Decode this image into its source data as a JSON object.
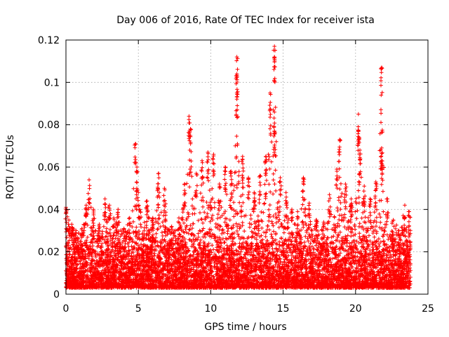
{
  "chart_data": {
    "type": "scatter",
    "title": "Day 006 of 2016, Rate Of TEC Index for receiver ista",
    "xlabel": "GPS time / hours",
    "ylabel": "ROTI / TECUs",
    "xlim": [
      0,
      25
    ],
    "ylim": [
      0,
      0.12
    ],
    "x_ticks": [
      0,
      5,
      10,
      15,
      20,
      25
    ],
    "x_tick_labels": [
      "0",
      "5",
      "10",
      "15",
      "20",
      "25"
    ],
    "y_ticks": [
      0,
      0.02,
      0.04,
      0.06,
      0.08,
      0.1,
      0.12
    ],
    "y_tick_labels": [
      "0",
      "0.02",
      "0.04",
      "0.06",
      "0.08",
      "0.1",
      "0.12"
    ],
    "grid": true,
    "marker": "+",
    "series": [
      {
        "name": "ROTI",
        "color": "#ff0000",
        "dense_band": {
          "x_range": [
            0,
            23.8
          ],
          "y_floor": 0.003,
          "y_typical_top": 0.03
        },
        "peaks": [
          [
            0.0,
            0.041
          ],
          [
            0.2,
            0.035
          ],
          [
            0.4,
            0.033
          ],
          [
            0.7,
            0.03
          ],
          [
            1.1,
            0.031
          ],
          [
            1.4,
            0.042
          ],
          [
            1.6,
            0.054
          ],
          [
            1.9,
            0.04
          ],
          [
            2.3,
            0.033
          ],
          [
            2.7,
            0.045
          ],
          [
            3.0,
            0.042
          ],
          [
            3.3,
            0.036
          ],
          [
            3.6,
            0.04
          ],
          [
            4.0,
            0.031
          ],
          [
            4.4,
            0.036
          ],
          [
            4.8,
            0.071
          ],
          [
            4.9,
            0.06
          ],
          [
            5.1,
            0.04
          ],
          [
            5.6,
            0.044
          ],
          [
            6.0,
            0.036
          ],
          [
            6.4,
            0.057
          ],
          [
            6.8,
            0.05
          ],
          [
            7.3,
            0.032
          ],
          [
            7.8,
            0.036
          ],
          [
            8.2,
            0.052
          ],
          [
            8.5,
            0.084
          ],
          [
            8.6,
            0.078
          ],
          [
            9.0,
            0.057
          ],
          [
            9.4,
            0.063
          ],
          [
            9.8,
            0.067
          ],
          [
            10.2,
            0.066
          ],
          [
            10.6,
            0.052
          ],
          [
            11.0,
            0.06
          ],
          [
            11.4,
            0.058
          ],
          [
            11.8,
            0.112
          ],
          [
            11.8,
            0.104
          ],
          [
            11.8,
            0.095
          ],
          [
            12.2,
            0.065
          ],
          [
            12.6,
            0.055
          ],
          [
            13.0,
            0.048
          ],
          [
            13.4,
            0.056
          ],
          [
            13.8,
            0.065
          ],
          [
            14.1,
            0.095
          ],
          [
            14.4,
            0.117
          ],
          [
            14.4,
            0.112
          ],
          [
            14.4,
            0.086
          ],
          [
            14.4,
            0.077
          ],
          [
            14.8,
            0.055
          ],
          [
            15.2,
            0.048
          ],
          [
            15.6,
            0.04
          ],
          [
            16.0,
            0.039
          ],
          [
            16.4,
            0.055
          ],
          [
            16.8,
            0.043
          ],
          [
            17.3,
            0.035
          ],
          [
            17.8,
            0.034
          ],
          [
            18.2,
            0.047
          ],
          [
            18.7,
            0.059
          ],
          [
            18.9,
            0.073
          ],
          [
            19.3,
            0.052
          ],
          [
            19.7,
            0.045
          ],
          [
            20.2,
            0.085
          ],
          [
            20.2,
            0.077
          ],
          [
            20.3,
            0.068
          ],
          [
            20.6,
            0.051
          ],
          [
            21.0,
            0.045
          ],
          [
            21.4,
            0.053
          ],
          [
            21.8,
            0.107
          ],
          [
            21.8,
            0.069
          ],
          [
            21.8,
            0.063
          ],
          [
            22.2,
            0.045
          ],
          [
            22.6,
            0.035
          ],
          [
            23.0,
            0.03
          ],
          [
            23.4,
            0.042
          ],
          [
            23.7,
            0.039
          ]
        ]
      }
    ]
  }
}
